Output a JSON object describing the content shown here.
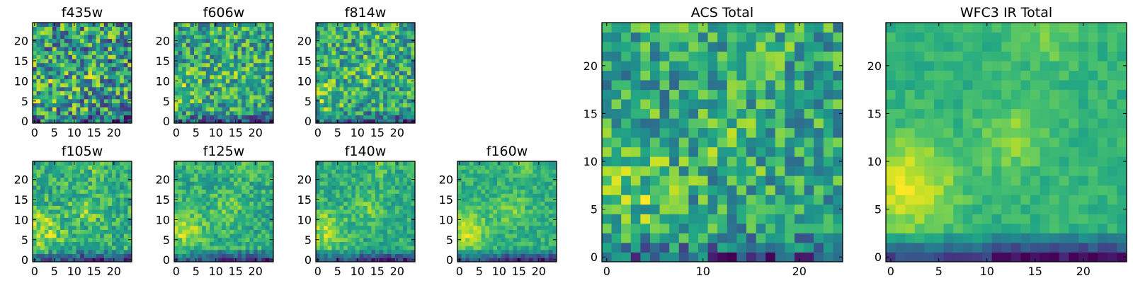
{
  "chart_data": {
    "type": "heatmap",
    "colormap": "viridis",
    "grid": false,
    "panels": [
      {
        "id": "f435w",
        "title": "f435w",
        "seed": 1,
        "noise": 0.55,
        "smooth": 0.3,
        "xlim": [
          0,
          24
        ],
        "ylim": [
          0,
          24
        ],
        "xticks": [
          0,
          5,
          10,
          15,
          20
        ],
        "yticks": [
          0,
          5,
          10,
          15,
          20
        ]
      },
      {
        "id": "f606w",
        "title": "f606w",
        "seed": 2,
        "noise": 0.45,
        "smooth": 0.45,
        "xlim": [
          0,
          24
        ],
        "ylim": [
          0,
          24
        ],
        "xticks": [
          0,
          5,
          10,
          15,
          20
        ],
        "yticks": [
          0,
          5,
          10,
          15,
          20
        ]
      },
      {
        "id": "f814w",
        "title": "f814w",
        "seed": 3,
        "noise": 0.45,
        "smooth": 0.45,
        "xlim": [
          0,
          24
        ],
        "ylim": [
          0,
          24
        ],
        "xticks": [
          0,
          5,
          10,
          15,
          20
        ],
        "yticks": [
          0,
          5,
          10,
          15,
          20
        ]
      },
      {
        "id": "f105w",
        "title": "f105w",
        "seed": 4,
        "noise": 0.3,
        "smooth": 0.65,
        "xlim": [
          0,
          24
        ],
        "ylim": [
          0,
          24
        ],
        "xticks": [
          0,
          5,
          10,
          15,
          20
        ],
        "yticks": [
          0,
          5,
          10,
          15,
          20
        ]
      },
      {
        "id": "f125w",
        "title": "f125w",
        "seed": 5,
        "noise": 0.26,
        "smooth": 0.7,
        "xlim": [
          0,
          24
        ],
        "ylim": [
          0,
          24
        ],
        "xticks": [
          0,
          5,
          10,
          15,
          20
        ],
        "yticks": [
          0,
          5,
          10,
          15,
          20
        ]
      },
      {
        "id": "f140w",
        "title": "f140w",
        "seed": 6,
        "noise": 0.24,
        "smooth": 0.72,
        "xlim": [
          0,
          24
        ],
        "ylim": [
          0,
          24
        ],
        "xticks": [
          0,
          5,
          10,
          15,
          20
        ],
        "yticks": [
          0,
          5,
          10,
          15,
          20
        ]
      },
      {
        "id": "f160w",
        "title": "f160w",
        "seed": 7,
        "noise": 0.2,
        "smooth": 0.78,
        "xlim": [
          0,
          24
        ],
        "ylim": [
          0,
          24
        ],
        "xticks": [
          0,
          5,
          10,
          15,
          20
        ],
        "yticks": [
          0,
          5,
          10,
          15,
          20
        ]
      },
      {
        "id": "acs-total",
        "title": "ACS Total",
        "seed": 8,
        "noise": 0.4,
        "smooth": 0.5,
        "xlim": [
          0,
          24
        ],
        "ylim": [
          0,
          24
        ],
        "xticks": [
          0,
          10,
          20
        ],
        "yticks": [
          0,
          5,
          10,
          15,
          20
        ]
      },
      {
        "id": "wfc3-ir-total",
        "title": "WFC3 IR Total",
        "seed": 9,
        "noise": 0.12,
        "smooth": 0.88,
        "xlim": [
          0,
          24
        ],
        "ylim": [
          0,
          24
        ],
        "xticks": [
          0,
          5,
          10,
          15,
          20
        ],
        "yticks": [
          0,
          5,
          10,
          15,
          20
        ]
      }
    ]
  }
}
